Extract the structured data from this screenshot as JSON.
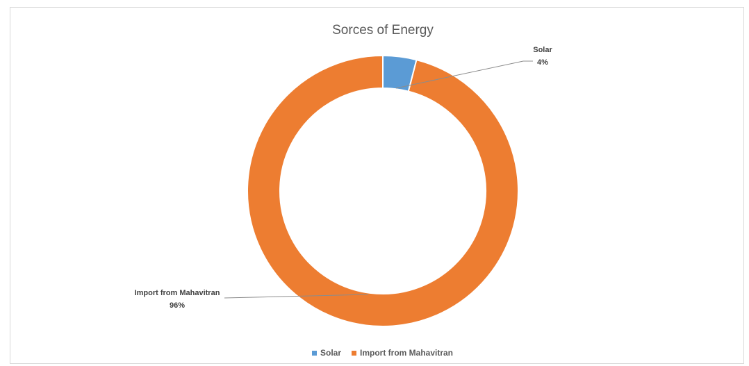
{
  "chart_data": {
    "type": "pie",
    "style": "doughnut",
    "title": "Sorces of Energy",
    "categories": [
      "Solar",
      "Import from Mahavitran"
    ],
    "values": [
      4,
      96
    ],
    "unit": "%",
    "data_labels": [
      {
        "name": "Solar",
        "value": "4%"
      },
      {
        "name": "Import from Mahavitran",
        "value": "96%"
      }
    ],
    "colors": [
      "#5b9bd5",
      "#ed7d31"
    ],
    "legend": {
      "position": "bottom",
      "entries": [
        "Solar",
        "Import from Mahavitran"
      ]
    },
    "start_angle": "top",
    "direction": "clockwise"
  }
}
